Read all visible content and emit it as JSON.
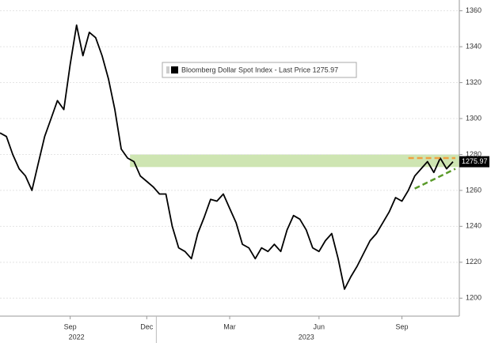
{
  "chart_data": {
    "type": "line",
    "categories": [
      null,
      null,
      null,
      null,
      null,
      null,
      null,
      null,
      null,
      null,
      null,
      "Sep",
      null,
      null,
      null,
      null,
      null,
      null,
      null,
      null,
      null,
      null,
      null,
      "Dec",
      null,
      null,
      null,
      null,
      null,
      null,
      null,
      null,
      null,
      null,
      null,
      null,
      "Mar",
      null,
      null,
      null,
      null,
      null,
      null,
      null,
      null,
      null,
      null,
      null,
      null,
      null,
      "Jun",
      null,
      null,
      null,
      null,
      null,
      null,
      null,
      null,
      null,
      null,
      null,
      null,
      "Sep",
      null,
      null,
      null,
      null,
      null,
      null,
      null,
      null
    ],
    "category_groups": [
      {
        "label": "2022",
        "start": 0,
        "end": 24
      },
      {
        "label": "2023",
        "start": 25,
        "end": 71
      }
    ],
    "series": [
      {
        "name": "Bloomberg Dollar Spot Index - Last Price 1275.97",
        "color": "#000000",
        "values": [
          1292,
          1290,
          1280,
          1272,
          1268,
          1260,
          1275,
          1290,
          1300,
          1310,
          1305,
          1330,
          1352,
          1335,
          1348,
          1345,
          1335,
          1322,
          1305,
          1283,
          1278,
          1276,
          1268,
          1265,
          1262,
          1258,
          1258,
          1240,
          1228,
          1226,
          1222,
          1236,
          1245,
          1255,
          1254,
          1258,
          1250,
          1242,
          1230,
          1228,
          1222,
          1228,
          1226,
          1230,
          1226,
          1238,
          1246,
          1244,
          1238,
          1228,
          1226,
          1232,
          1236,
          1222,
          1205,
          1212,
          1218,
          1225,
          1232,
          1236,
          1242,
          1248,
          1256,
          1254,
          1260,
          1268,
          1272,
          1276,
          1270,
          1278,
          1272,
          1275.97
        ]
      }
    ],
    "ylim": [
      1190,
      1366
    ],
    "yticks": [
      1200,
      1220,
      1240,
      1260,
      1280,
      1300,
      1320,
      1340,
      1360
    ],
    "grid": true,
    "bands": [
      {
        "from": 1273,
        "to": 1280,
        "start": 21,
        "end": 71,
        "color": "#c6e0a4"
      }
    ],
    "trend_lines": [
      {
        "color": "#f0a040",
        "values": [
          1278,
          1278
        ],
        "start": 64,
        "end": 71
      },
      {
        "color": "#5a9a2a",
        "values": [
          1261,
          1272
        ],
        "start": 65,
        "end": 71
      }
    ]
  }
}
